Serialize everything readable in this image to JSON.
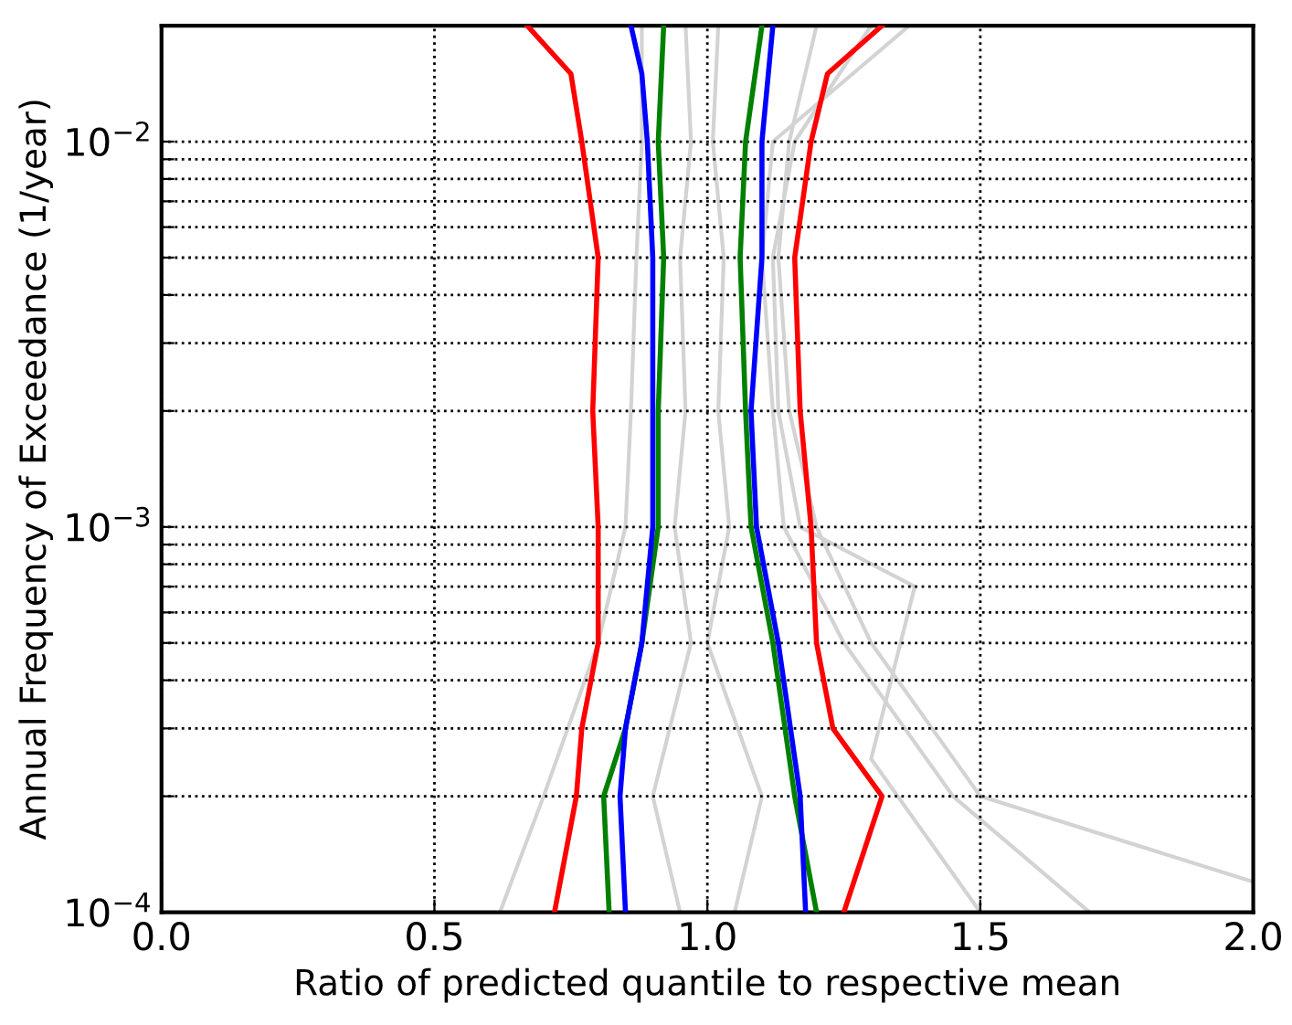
{
  "chart_data": {
    "type": "line",
    "xlabel": "Ratio of predicted quantile to respective mean",
    "ylabel": "Annual Frequency of Exceedance (1/year)",
    "log": "y",
    "grid": true,
    "xlim": [
      0.0,
      2.0
    ],
    "xticks": [
      {
        "value": 0,
        "label": "0.0"
      },
      {
        "value": 0.5,
        "label": "0.5"
      },
      {
        "value": 1,
        "label": "1.0"
      },
      {
        "value": 1.5,
        "label": "1.5"
      },
      {
        "value": 2,
        "label": "2.0"
      }
    ],
    "ylim": [
      0.0001,
      0.02
    ],
    "yticks": [
      {
        "value": 0.0001,
        "label": "10$^{−4}$"
      },
      {
        "value": 0.0002,
        "label": null
      },
      {
        "value": 0.0003,
        "label": null
      },
      {
        "value": 0.0004,
        "label": null
      },
      {
        "value": 0.0005,
        "label": null
      },
      {
        "value": 0.0006,
        "label": null
      },
      {
        "value": 0.0007,
        "label": null
      },
      {
        "value": 0.0008,
        "label": null
      },
      {
        "value": 0.0009,
        "label": null
      },
      {
        "value": 0.001,
        "label": "10$^{−3}$"
      },
      {
        "value": 0.002,
        "label": null
      },
      {
        "value": 0.003,
        "label": null
      },
      {
        "value": 0.004,
        "label": null
      },
      {
        "value": 0.005,
        "label": null
      },
      {
        "value": 0.006,
        "label": null
      },
      {
        "value": 0.007,
        "label": null
      },
      {
        "value": 0.008,
        "label": null
      },
      {
        "value": 0.009,
        "label": null
      },
      {
        "value": 0.01,
        "label": "10$^{−2}$"
      }
    ],
    "series": [
      {
        "color": "#d3d3d3",
        "x": [
          0.62,
          0.7,
          0.8,
          0.85,
          0.86,
          0.87,
          0.88,
          0.88
        ],
        "values": [
          0.0001,
          0.0002,
          0.0005,
          0.001,
          0.002,
          0.005,
          0.01,
          0.02
        ]
      },
      {
        "color": "#d3d3d3",
        "x": [
          0.95,
          0.9,
          0.97,
          0.94,
          0.96,
          0.95,
          0.97,
          0.96
        ],
        "values": [
          0.0001,
          0.0002,
          0.0005,
          0.001,
          0.002,
          0.005,
          0.01,
          0.02
        ]
      },
      {
        "color": "#d3d3d3",
        "x": [
          1.05,
          1.1,
          1.0,
          1.04,
          1.02,
          1.03,
          1.01,
          1.02
        ],
        "values": [
          0.0001,
          0.0002,
          0.0005,
          0.001,
          0.002,
          0.005,
          0.01,
          0.02
        ]
      },
      {
        "color": "#d3d3d3",
        "x": [
          2.0,
          1.5,
          1.3,
          1.2,
          1.15,
          1.13,
          1.15,
          1.2
        ],
        "values": [
          0.00012,
          0.0002,
          0.0005,
          0.001,
          0.002,
          0.005,
          0.01,
          0.02
        ]
      },
      {
        "color": "#d3d3d3",
        "x": [
          1.7,
          1.45,
          1.25,
          1.14,
          1.12,
          1.1,
          1.12,
          1.37
        ],
        "values": [
          0.0001,
          0.0002,
          0.0005,
          0.001,
          0.002,
          0.005,
          0.01,
          0.02
        ]
      },
      {
        "color": "#d3d3d3",
        "x": [
          1.5,
          1.3,
          1.38,
          1.17,
          1.13,
          1.12,
          1.16,
          1.3
        ],
        "values": [
          0.0001,
          0.00025,
          0.0007,
          0.001,
          0.002,
          0.005,
          0.01,
          0.02
        ]
      },
      {
        "color": "#ff0000",
        "x": [
          0.72,
          0.76,
          0.77,
          0.8,
          0.8,
          0.79,
          0.8,
          0.77,
          0.75,
          0.67
        ],
        "values": [
          0.0001,
          0.0002,
          0.0003,
          0.0005,
          0.001,
          0.002,
          0.005,
          0.01,
          0.015,
          0.02
        ]
      },
      {
        "color": "#ff0000",
        "x": [
          1.25,
          1.32,
          1.23,
          1.2,
          1.19,
          1.17,
          1.16,
          1.19,
          1.22,
          1.32
        ],
        "values": [
          0.0001,
          0.0002,
          0.0003,
          0.0005,
          0.001,
          0.002,
          0.005,
          0.01,
          0.015,
          0.02
        ]
      },
      {
        "color": "#008000",
        "x": [
          0.82,
          0.81,
          0.85,
          0.88,
          0.91,
          0.91,
          0.92,
          0.91,
          0.92
        ],
        "values": [
          0.0001,
          0.0002,
          0.0003,
          0.0005,
          0.001,
          0.002,
          0.005,
          0.01,
          0.02
        ]
      },
      {
        "color": "#008000",
        "x": [
          1.2,
          1.16,
          1.12,
          1.08,
          1.07,
          1.06,
          1.07,
          1.1
        ],
        "values": [
          0.0001,
          0.0002,
          0.0005,
          0.001,
          0.002,
          0.005,
          0.01,
          0.02
        ]
      },
      {
        "color": "#0000ff",
        "x": [
          0.85,
          0.84,
          0.85,
          0.88,
          0.9,
          0.9,
          0.9,
          0.89,
          0.88,
          0.86
        ],
        "values": [
          0.0001,
          0.0002,
          0.0003,
          0.0005,
          0.001,
          0.002,
          0.005,
          0.01,
          0.015,
          0.02
        ]
      },
      {
        "color": "#0000ff",
        "x": [
          1.18,
          1.17,
          1.13,
          1.09,
          1.08,
          1.1,
          1.1,
          1.12
        ],
        "values": [
          0.0001,
          0.0002,
          0.0005,
          0.001,
          0.002,
          0.005,
          0.01,
          0.02
        ]
      }
    ]
  }
}
